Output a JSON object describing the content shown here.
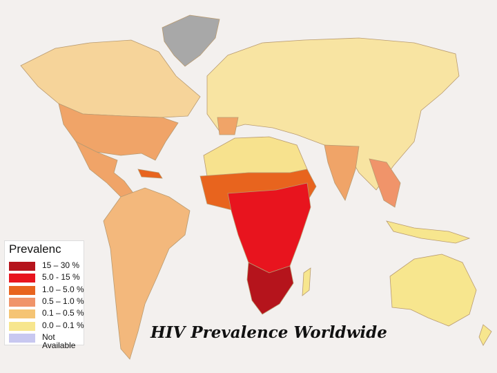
{
  "map": {
    "title": "HIV Prevalence Worldwide",
    "legend": {
      "title": "Prevalence",
      "items": [
        {
          "label": "15 – 30 %",
          "color": "#b5141c"
        },
        {
          "label": "5.0 - 15 %",
          "color": "#e8141e"
        },
        {
          "label": "1.0 – 5.0 %",
          "color": "#e8641e"
        },
        {
          "label": "0.5 – 1.0 %",
          "color": "#f0946a"
        },
        {
          "label": "0.1 – 0.5 %",
          "color": "#f5c474"
        },
        {
          "label": "0.0 – 0.1 %",
          "color": "#f7e68e"
        },
        {
          "label": "Not Available",
          "color": "#c8c8f0"
        }
      ]
    }
  }
}
